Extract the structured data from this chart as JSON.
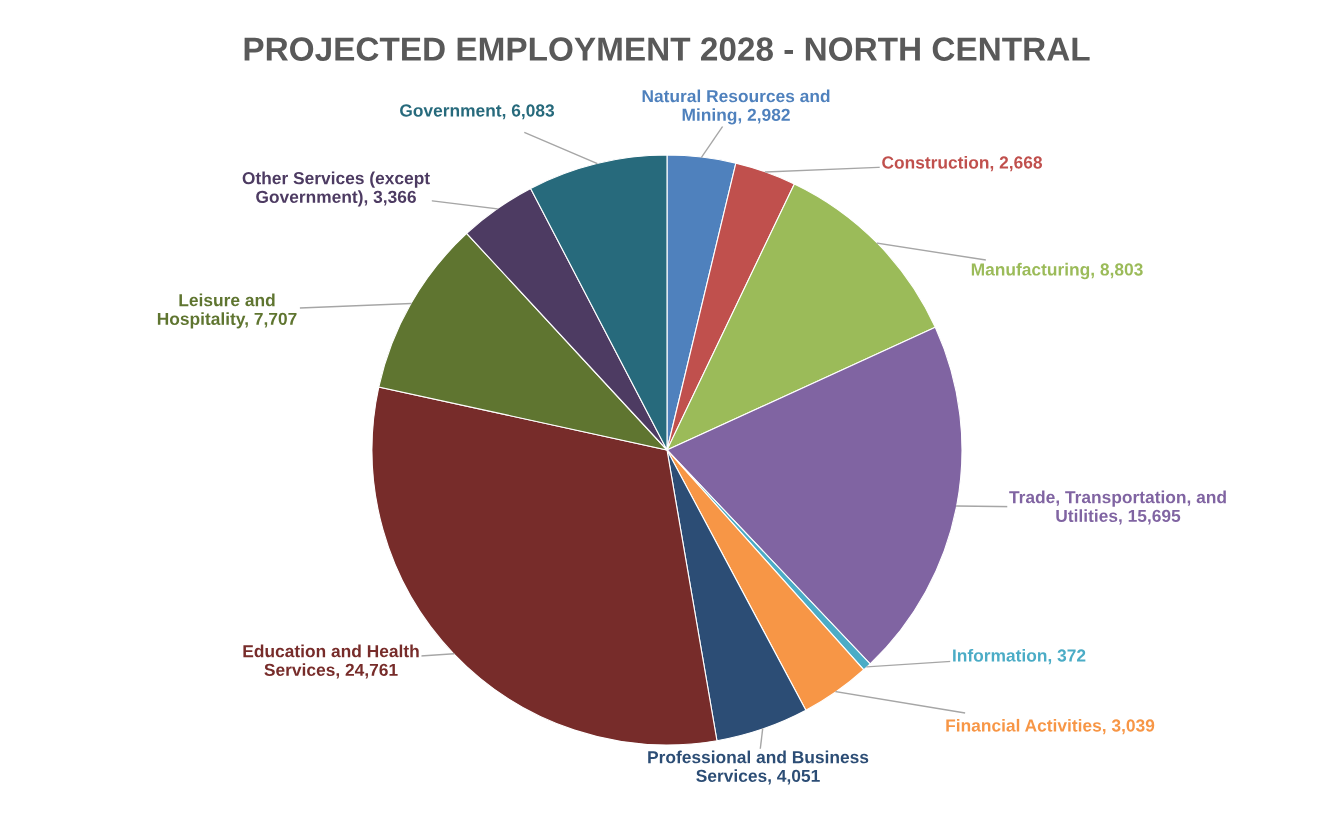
{
  "chart_data": {
    "type": "pie",
    "title": "PROJECTED EMPLOYMENT 2028 - NORTH CENTRAL",
    "categories": [
      "Natural Resources and Mining",
      "Construction",
      "Manufacturing",
      "Trade, Transportation, and Utilities",
      "Information",
      "Financial Activities",
      "Professional and Business Services",
      "Education and Health Services",
      "Leisure and Hospitality",
      "Other Services (except Government)",
      "Government"
    ],
    "values": [
      2982,
      2668,
      8803,
      15695,
      372,
      3039,
      4051,
      24761,
      7707,
      3366,
      6083
    ],
    "colors": [
      "#4f81bd",
      "#c0504d",
      "#9bbb59",
      "#8064a2",
      "#4bacc6",
      "#f79646",
      "#2c4d75",
      "#772c2a",
      "#5f7530",
      "#4d3b62",
      "#276a7c"
    ],
    "value_labels": [
      "2,982",
      "2,668",
      "8,803",
      "15,695",
      "372",
      "3,039",
      "4,051",
      "24,761",
      "7,707",
      "3,366",
      "6,083"
    ],
    "legend": false
  }
}
